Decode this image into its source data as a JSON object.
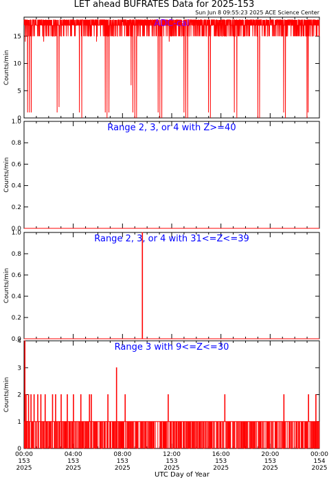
{
  "header": {
    "title": "LET ahead BUFRATES Data for 2025-153",
    "timestamp": "Sun Jun  8 09:55:23 2025 ACE Science Center"
  },
  "x_axis": {
    "label": "UTC Day of Year",
    "ticks": [
      {
        "hours": 0,
        "time": "00:00",
        "doy": "153",
        "year": "2025"
      },
      {
        "hours": 4,
        "time": "04:00",
        "doy": "153",
        "year": "2025"
      },
      {
        "hours": 8,
        "time": "08:00",
        "doy": "153",
        "year": "2025"
      },
      {
        "hours": 12,
        "time": "12:00",
        "doy": "153",
        "year": "2025"
      },
      {
        "hours": 16,
        "time": "16:00",
        "doy": "153",
        "year": "2025"
      },
      {
        "hours": 20,
        "time": "20:00",
        "doy": "153",
        "year": "2025"
      },
      {
        "hours": 24,
        "time": "00:00",
        "doy": "154",
        "year": "2025"
      }
    ]
  },
  "colors": {
    "data": "#ff0000",
    "title": "#0000ff",
    "annotation": "#8000ff",
    "axes": "#000000"
  },
  "chart_data": [
    {
      "type": "line",
      "title": "ADC-cal",
      "ylabel": "Counts/min",
      "ylim": [
        0,
        18.5
      ],
      "yticks": [
        0,
        5,
        10,
        15
      ],
      "xlim": [
        0,
        24
      ],
      "baseline": 17,
      "noise_range": [
        15,
        18
      ],
      "dips": [
        {
          "t": 0.1,
          "v": 14
        },
        {
          "t": 0.3,
          "v": 1
        },
        {
          "t": 0.45,
          "v": 1
        },
        {
          "t": 0.6,
          "v": 1
        },
        {
          "t": 1.1,
          "v": 15
        },
        {
          "t": 1.6,
          "v": 14
        },
        {
          "t": 2.7,
          "v": 1
        },
        {
          "t": 2.85,
          "v": 2
        },
        {
          "t": 3.2,
          "v": 15
        },
        {
          "t": 4.5,
          "v": 1
        },
        {
          "t": 4.7,
          "v": 0
        },
        {
          "t": 5.4,
          "v": 15
        },
        {
          "t": 5.9,
          "v": 14
        },
        {
          "t": 6.6,
          "v": 1
        },
        {
          "t": 6.75,
          "v": 0
        },
        {
          "t": 6.9,
          "v": 1
        },
        {
          "t": 7.6,
          "v": 15
        },
        {
          "t": 8.7,
          "v": 6
        },
        {
          "t": 8.85,
          "v": 1
        },
        {
          "t": 9.0,
          "v": 0
        },
        {
          "t": 9.15,
          "v": 0
        },
        {
          "t": 9.8,
          "v": 15
        },
        {
          "t": 10.9,
          "v": 1
        },
        {
          "t": 11.05,
          "v": 0
        },
        {
          "t": 11.2,
          "v": 0
        },
        {
          "t": 11.8,
          "v": 14
        },
        {
          "t": 12.6,
          "v": 15
        },
        {
          "t": 13.0,
          "v": 1
        },
        {
          "t": 13.15,
          "v": 0
        },
        {
          "t": 13.3,
          "v": 0
        },
        {
          "t": 14.5,
          "v": 15
        },
        {
          "t": 15.0,
          "v": 1
        },
        {
          "t": 15.15,
          "v": 0
        },
        {
          "t": 16.2,
          "v": 15
        },
        {
          "t": 17.1,
          "v": 1
        },
        {
          "t": 17.3,
          "v": 0
        },
        {
          "t": 18.6,
          "v": 15
        },
        {
          "t": 19.0,
          "v": 0
        },
        {
          "t": 19.15,
          "v": 0
        },
        {
          "t": 20.3,
          "v": 15
        },
        {
          "t": 21.1,
          "v": 1
        },
        {
          "t": 21.25,
          "v": 0
        },
        {
          "t": 22.2,
          "v": 15
        },
        {
          "t": 23.0,
          "v": 0
        },
        {
          "t": 23.1,
          "v": 1
        }
      ]
    },
    {
      "type": "line",
      "title": "Range 2, 3, or 4 with Z>=40",
      "ylabel": "Counts/min",
      "ylim": [
        0,
        1
      ],
      "yticks": [
        0.0,
        0.2,
        0.4,
        0.6,
        0.8,
        1.0
      ],
      "xlim": [
        0,
        24
      ],
      "baseline": 0,
      "spikes": []
    },
    {
      "type": "line",
      "title": "Range 2, 3, or 4 with 31<=Z<=39",
      "ylabel": "Counts/min",
      "ylim": [
        0,
        1
      ],
      "yticks": [
        0.0,
        0.2,
        0.4,
        0.6,
        0.8,
        1.0
      ],
      "xlim": [
        0,
        24
      ],
      "baseline": 0,
      "spikes": [
        {
          "t": 9.6,
          "v": 1
        }
      ]
    },
    {
      "type": "line",
      "title": "Range 3 with 9<=Z<=30",
      "ylabel": "Counts/min",
      "ylim": [
        0,
        4
      ],
      "yticks": [
        0,
        1,
        2,
        3,
        4
      ],
      "xlim": [
        0,
        24
      ],
      "baseline": 1,
      "spikes": [
        {
          "t": 0.05,
          "v": 4
        },
        {
          "t": 0.15,
          "v": 2
        },
        {
          "t": 0.35,
          "v": 2
        },
        {
          "t": 0.55,
          "v": 2
        },
        {
          "t": 0.8,
          "v": 2
        },
        {
          "t": 1.1,
          "v": 2
        },
        {
          "t": 1.35,
          "v": 2
        },
        {
          "t": 1.7,
          "v": 2
        },
        {
          "t": 2.3,
          "v": 2
        },
        {
          "t": 2.55,
          "v": 2
        },
        {
          "t": 3.0,
          "v": 2
        },
        {
          "t": 3.5,
          "v": 2
        },
        {
          "t": 4.0,
          "v": 2
        },
        {
          "t": 4.6,
          "v": 2
        },
        {
          "t": 5.3,
          "v": 2
        },
        {
          "t": 5.45,
          "v": 2
        },
        {
          "t": 6.8,
          "v": 2
        },
        {
          "t": 7.5,
          "v": 3
        },
        {
          "t": 8.2,
          "v": 2
        },
        {
          "t": 11.7,
          "v": 2
        },
        {
          "t": 16.3,
          "v": 2
        },
        {
          "t": 21.1,
          "v": 2
        },
        {
          "t": 23.1,
          "v": 2
        },
        {
          "t": 23.7,
          "v": 2
        }
      ],
      "gaps": [
        [
          0.2,
          0.22
        ],
        [
          0.7,
          0.72
        ],
        [
          1.5,
          1.52
        ],
        [
          2.1,
          2.12
        ],
        [
          3.3,
          3.32
        ],
        [
          3.9,
          3.92
        ],
        [
          4.8,
          4.82
        ],
        [
          5.7,
          5.72
        ],
        [
          6.3,
          6.32
        ],
        [
          7.2,
          7.22
        ],
        [
          7.9,
          7.92
        ],
        [
          8.5,
          8.52
        ],
        [
          9.2,
          9.22
        ],
        [
          9.9,
          9.92
        ],
        [
          10.5,
          10.52
        ],
        [
          11.3,
          11.32
        ],
        [
          12.1,
          12.12
        ],
        [
          12.7,
          12.72
        ],
        [
          13.4,
          13.42
        ],
        [
          14.0,
          14.02
        ],
        [
          14.6,
          14.62
        ],
        [
          15.2,
          15.22
        ],
        [
          15.9,
          15.92
        ],
        [
          16.6,
          16.62
        ],
        [
          17.3,
          17.32
        ],
        [
          17.9,
          17.92
        ],
        [
          18.5,
          18.52
        ],
        [
          19.2,
          19.22
        ],
        [
          19.8,
          19.82
        ],
        [
          20.4,
          20.42
        ],
        [
          21.0,
          21.02
        ],
        [
          21.6,
          21.62
        ],
        [
          22.3,
          22.32
        ],
        [
          22.9,
          22.92
        ],
        [
          23.5,
          23.52
        ]
      ]
    }
  ]
}
